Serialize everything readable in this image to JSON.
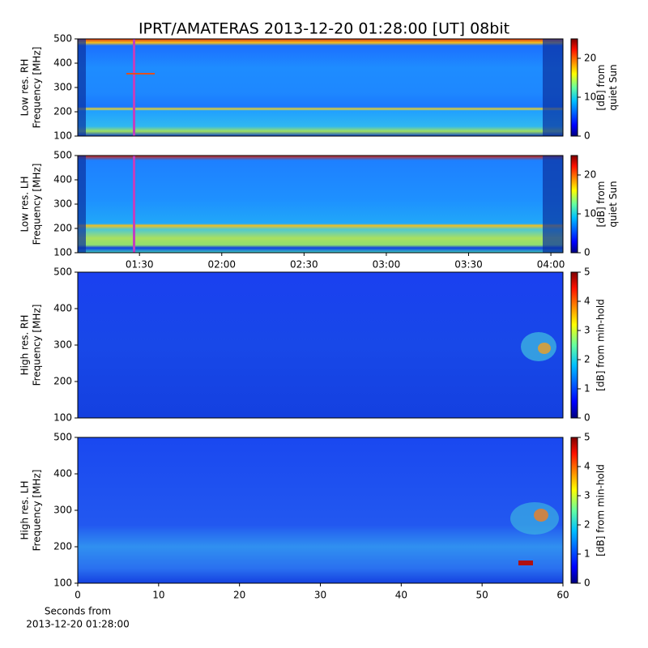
{
  "chart_data": [
    {
      "type": "heatmap",
      "title": "IPRT/AMATERAS 2013-12-20 01:28:00 [UT]   08bit",
      "ylabel": [
        "Low res. RH",
        "Frequency [MHz]"
      ],
      "ylim": [
        100,
        500
      ],
      "yticks": [
        100,
        200,
        300,
        400,
        500
      ],
      "colorbar": {
        "lim": [
          0,
          25
        ],
        "ticks": [
          0,
          10,
          20
        ],
        "label": [
          "[dB] from",
          "quiet Sun"
        ]
      }
    },
    {
      "type": "heatmap",
      "ylabel": [
        "Low res. LH",
        "Frequency [MHz]"
      ],
      "ylim": [
        100,
        500
      ],
      "yticks": [
        100,
        200,
        300,
        400,
        500
      ],
      "xlim": [
        67.5,
        244.4
      ],
      "xticks": [
        {
          "value": 90,
          "label": "01:30"
        },
        {
          "value": 120,
          "label": "02:00"
        },
        {
          "value": 150,
          "label": "02:30"
        },
        {
          "value": 180,
          "label": "03:00"
        },
        {
          "value": 210,
          "label": "03:30"
        },
        {
          "value": 240,
          "label": "04:00"
        }
      ],
      "colorbar": {
        "lim": [
          0,
          25
        ],
        "ticks": [
          0,
          10,
          20
        ],
        "label": [
          "[dB] from",
          "quiet Sun"
        ]
      }
    },
    {
      "type": "heatmap",
      "ylabel": [
        "High res. RH",
        "Frequency [MHz]"
      ],
      "ylim": [
        100,
        500
      ],
      "yticks": [
        100,
        200,
        300,
        400,
        500
      ],
      "colorbar": {
        "lim": [
          0,
          5
        ],
        "ticks": [
          0,
          1,
          2,
          3,
          4,
          5
        ],
        "label": [
          "[dB] from min-hold"
        ]
      }
    },
    {
      "type": "heatmap",
      "ylabel": [
        "High res. LH",
        "Frequency [MHz]"
      ],
      "ylim": [
        100,
        500
      ],
      "yticks": [
        100,
        200,
        300,
        400,
        500
      ],
      "xlim": [
        0,
        60
      ],
      "xticks": [
        0,
        10,
        20,
        30,
        40,
        50,
        60
      ],
      "xlabel": [
        "Seconds from",
        "2013-12-20 01:28:00"
      ],
      "colorbar": {
        "lim": [
          0,
          5
        ],
        "ticks": [
          0,
          1,
          2,
          3,
          4,
          5
        ],
        "label": [
          "[dB] from min-hold"
        ]
      }
    }
  ]
}
